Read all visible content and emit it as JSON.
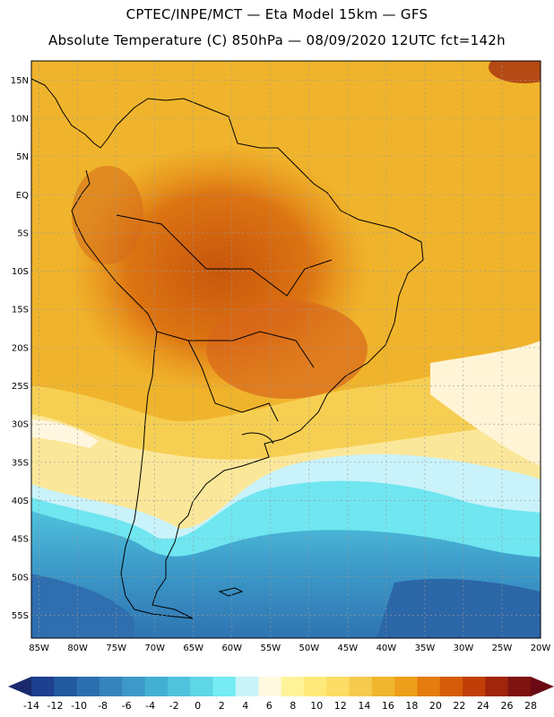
{
  "header": {
    "line1": "CPTEC/INPE/MCT —  Eta Model 15km — GFS",
    "line2": "Absolute Temperature (C) 850hPa — 08/09/2020 12UTC fct=142h"
  },
  "map": {
    "lat_labels": [
      "15N",
      "10N",
      "5N",
      "EQ",
      "5S",
      "10S",
      "15S",
      "20S",
      "25S",
      "30S",
      "35S",
      "40S",
      "45S",
      "50S",
      "55S"
    ],
    "lon_labels": [
      "85W",
      "80W",
      "75W",
      "70W",
      "65W",
      "60W",
      "55W",
      "50W",
      "45W",
      "40W",
      "35W",
      "30W",
      "25W",
      "20W"
    ],
    "lat_range": [
      17.5,
      -58
    ],
    "lon_range": [
      -86,
      -20
    ]
  },
  "colorbar": {
    "tick_labels": [
      "-14",
      "-12",
      "-10",
      "-8",
      "-6",
      "-4",
      "-2",
      "0",
      "2",
      "4",
      "6",
      "8",
      "10",
      "12",
      "14",
      "16",
      "18",
      "20",
      "22",
      "24",
      "26",
      "28"
    ],
    "under_color": "#1a2a6c",
    "over_color": "#6b0a14",
    "colors": [
      "#1f3f8f",
      "#235a9e",
      "#2c6fae",
      "#3584bc",
      "#3c99c8",
      "#43afd3",
      "#4fc3dc",
      "#5fd6e6",
      "#74ecf2",
      "#c8f4fa",
      "#fff9e0",
      "#fff39a",
      "#ffe97a",
      "#fbdc64",
      "#f5cb4e",
      "#f0b630",
      "#ed9e1a",
      "#e47c10",
      "#d65c0a",
      "#c03f08",
      "#a0250b",
      "#7e1410"
    ]
  }
}
